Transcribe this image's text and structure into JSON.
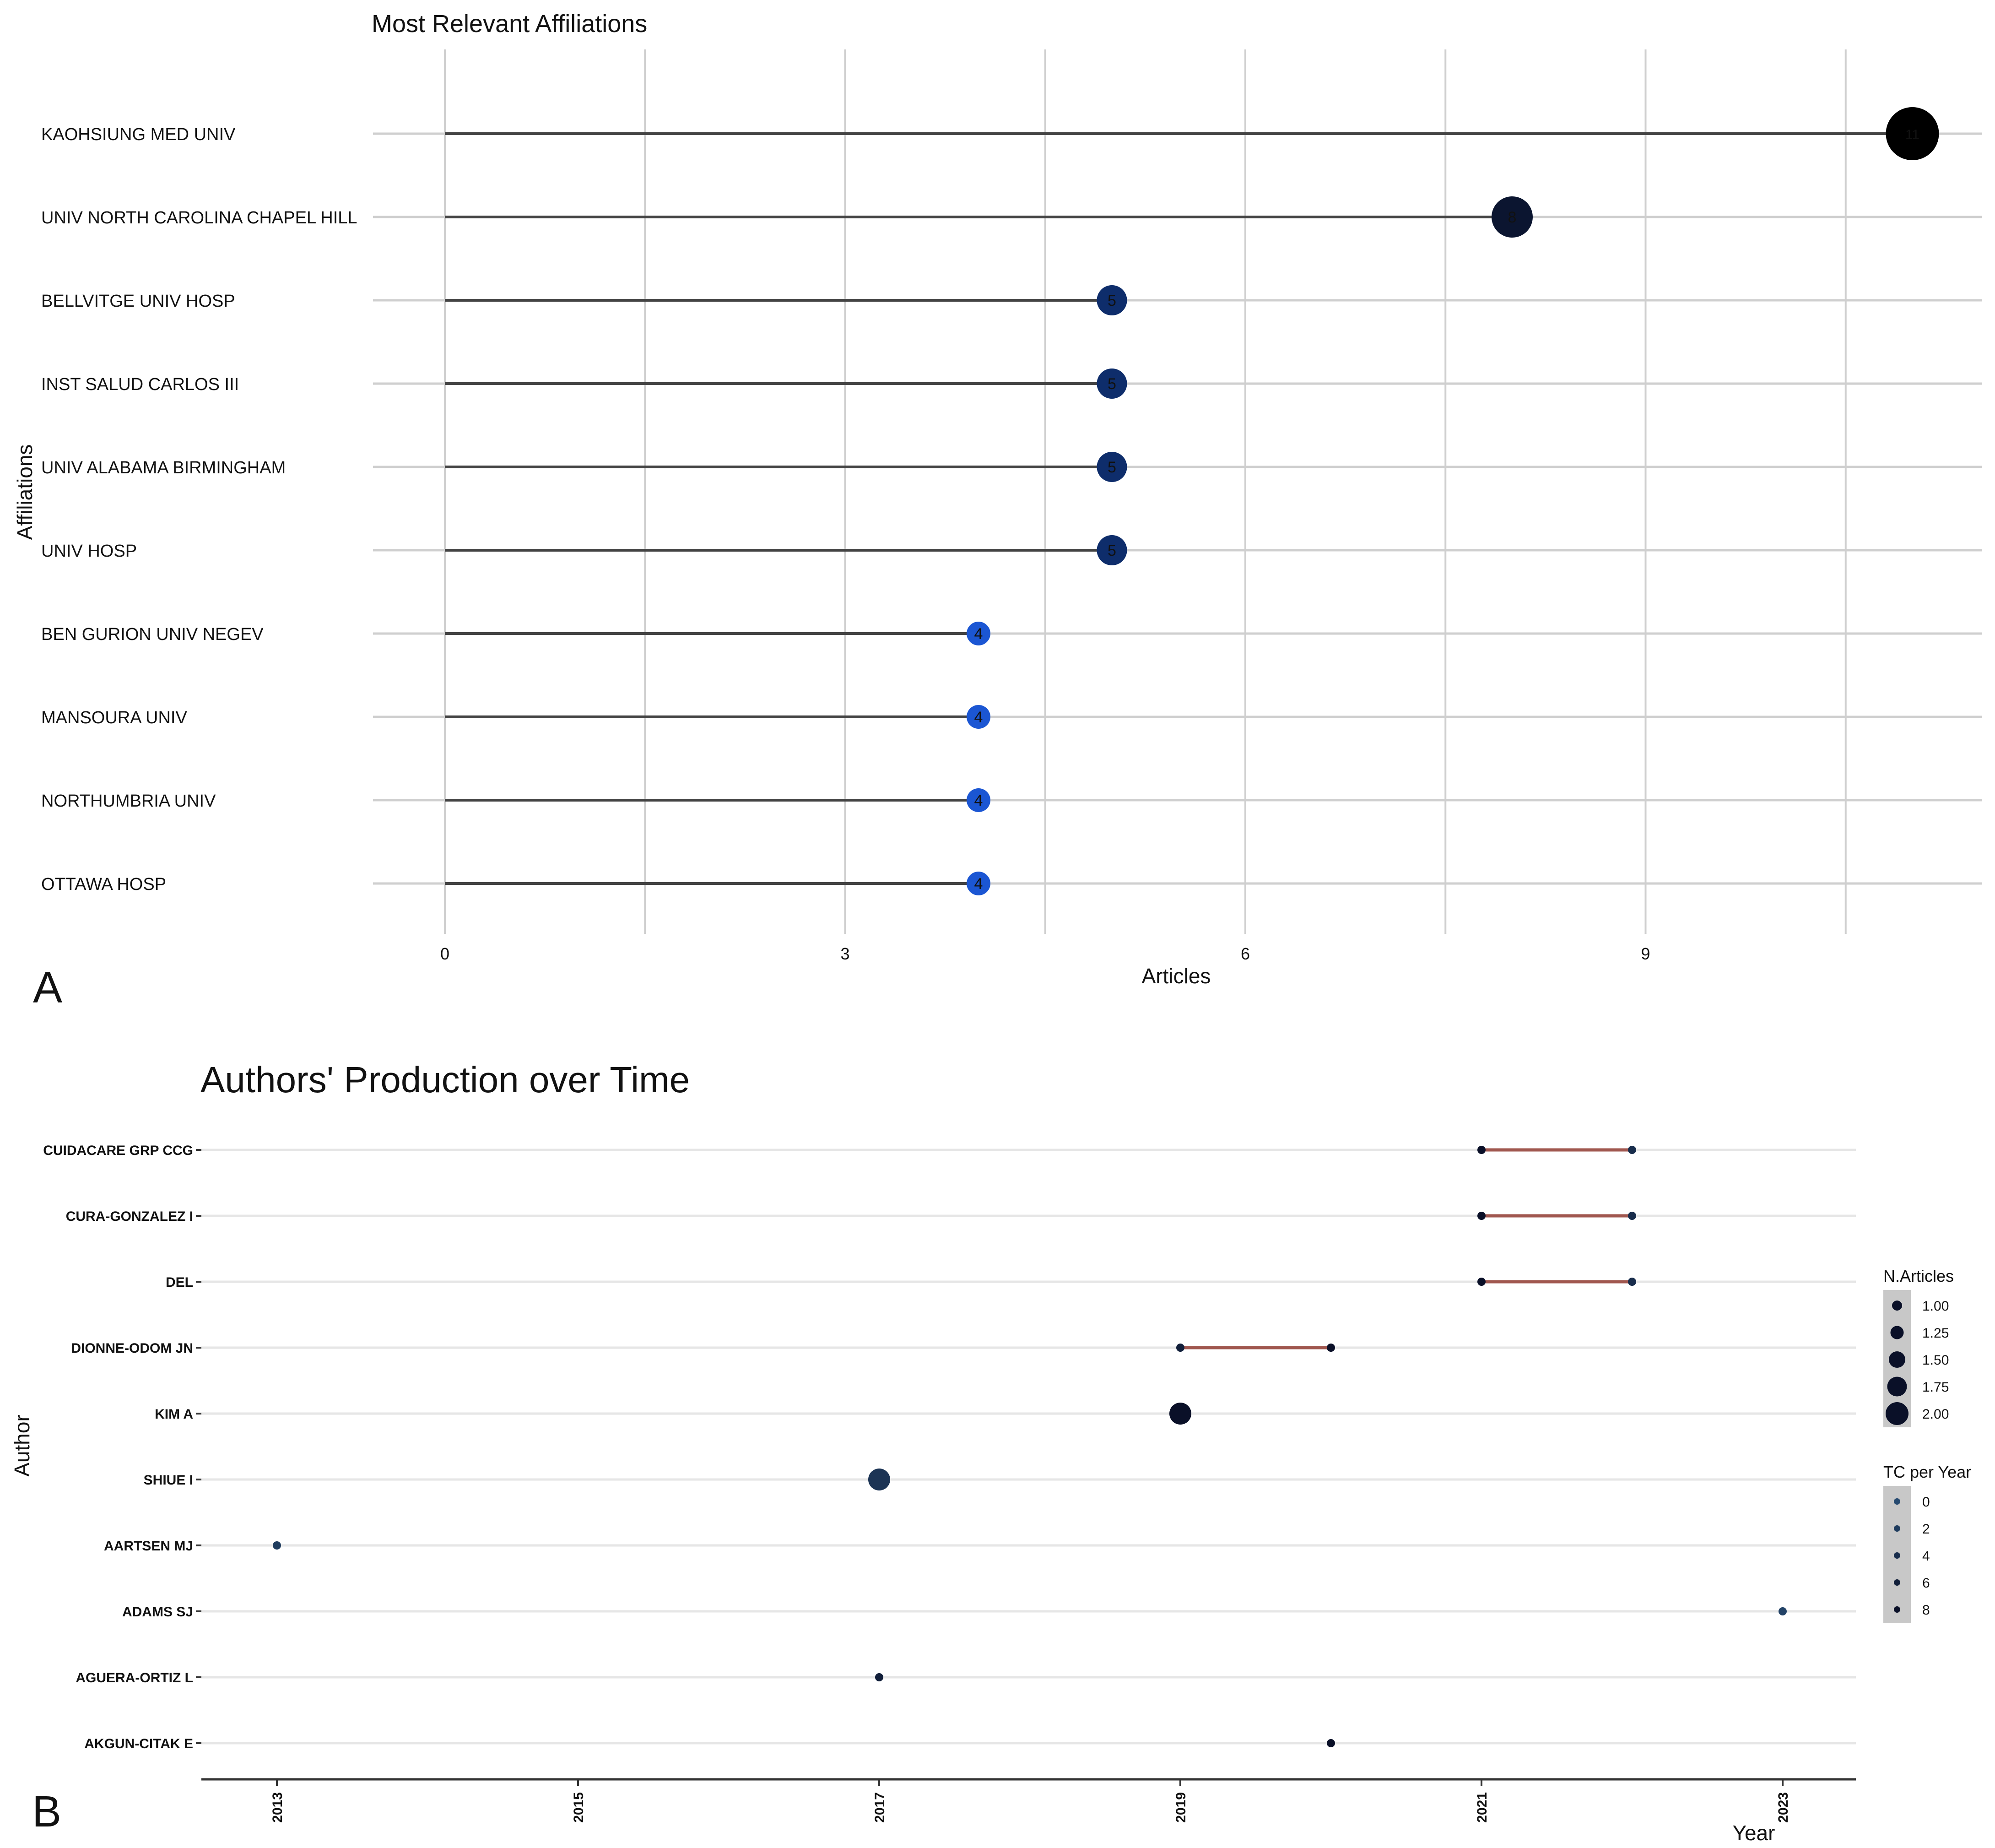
{
  "panel_a": {
    "label": "A",
    "chart_data": {
      "type": "lollipop",
      "title": "Most Relevant Affiliations",
      "xlabel": "Articles",
      "ylabel": "Affiliations",
      "xlim": [
        0,
        11
      ],
      "xticks": [
        "0",
        "3",
        "6",
        "9"
      ],
      "grid": true,
      "categories": [
        "KAOHSIUNG MED UNIV",
        "UNIV NORTH CAROLINA CHAPEL HILL",
        "BELLVITGE UNIV HOSP",
        "INST SALUD CARLOS III",
        "UNIV ALABAMA BIRMINGHAM",
        "UNIV HOSP",
        "BEN GURION UNIV NEGEV",
        "MANSOURA UNIV",
        "NORTHUMBRIA UNIV",
        "OTTAWA HOSP"
      ],
      "values": [
        11,
        8,
        5,
        5,
        5,
        5,
        4,
        4,
        4,
        4
      ],
      "value_labels": [
        "11",
        "8",
        "5",
        "5",
        "5",
        "5",
        "4",
        "4",
        "4",
        "4"
      ],
      "colors": {
        "11": "#000000",
        "8": "#0b1530",
        "5": "#0e2d6b",
        "4": "#1b56d3"
      }
    }
  },
  "panel_b": {
    "label": "B",
    "chart_data": {
      "type": "scatter",
      "title": "Authors' Production over Time",
      "xlabel": "Year",
      "ylabel": "Author",
      "xlim": [
        2012.8,
        2023.6
      ],
      "xticks": [
        "2013",
        "2015",
        "2017",
        "2019",
        "2021",
        "2023"
      ],
      "authors": [
        "CUIDACARE GRP CCG",
        "CURA-GONZALEZ I",
        "DEL",
        "DIONNE-ODOM JN",
        "KIM A",
        "SHIUE I",
        "AARTSEN MJ",
        "ADAMS SJ",
        "AGUERA-ORTIZ L",
        "AKGUN-CITAK E"
      ],
      "segments": [
        {
          "author": "CUIDACARE GRP CCG",
          "from": 2021,
          "to": 2022
        },
        {
          "author": "CURA-GONZALEZ I",
          "from": 2021,
          "to": 2022
        },
        {
          "author": "DEL",
          "from": 2021,
          "to": 2022
        },
        {
          "author": "DIONNE-ODOM JN",
          "from": 2019,
          "to": 2020
        }
      ],
      "points": [
        {
          "author": "CUIDACARE GRP CCG",
          "year": 2021,
          "articles": 1,
          "tc_per_year": 8
        },
        {
          "author": "CUIDACARE GRP CCG",
          "year": 2022,
          "articles": 1,
          "tc_per_year": 4
        },
        {
          "author": "CURA-GONZALEZ I",
          "year": 2021,
          "articles": 1,
          "tc_per_year": 8
        },
        {
          "author": "CURA-GONZALEZ I",
          "year": 2022,
          "articles": 1,
          "tc_per_year": 4
        },
        {
          "author": "DEL",
          "year": 2021,
          "articles": 1,
          "tc_per_year": 8
        },
        {
          "author": "DEL",
          "year": 2022,
          "articles": 1,
          "tc_per_year": 4
        },
        {
          "author": "DIONNE-ODOM JN",
          "year": 2019,
          "articles": 1,
          "tc_per_year": 6
        },
        {
          "author": "DIONNE-ODOM JN",
          "year": 2020,
          "articles": 1,
          "tc_per_year": 8
        },
        {
          "author": "KIM A",
          "year": 2019,
          "articles": 2,
          "tc_per_year": 8
        },
        {
          "author": "SHIUE I",
          "year": 2017,
          "articles": 2,
          "tc_per_year": 3
        },
        {
          "author": "AARTSEN MJ",
          "year": 2013,
          "articles": 1,
          "tc_per_year": 2
        },
        {
          "author": "ADAMS SJ",
          "year": 2023,
          "articles": 1,
          "tc_per_year": 1
        },
        {
          "author": "AGUERA-ORTIZ L",
          "year": 2017,
          "articles": 1,
          "tc_per_year": 6
        },
        {
          "author": "AKGUN-CITAK E",
          "year": 2020,
          "articles": 1,
          "tc_per_year": 8
        }
      ],
      "segment_color": "#a0574f",
      "legend_position": "right",
      "legend_articles": {
        "title": "N.Articles",
        "items": [
          "1.00",
          "1.25",
          "1.50",
          "1.75",
          "2.00"
        ]
      },
      "legend_tc": {
        "title": "TC per Year",
        "items": [
          "0",
          "2",
          "4",
          "6",
          "8"
        ]
      }
    }
  }
}
